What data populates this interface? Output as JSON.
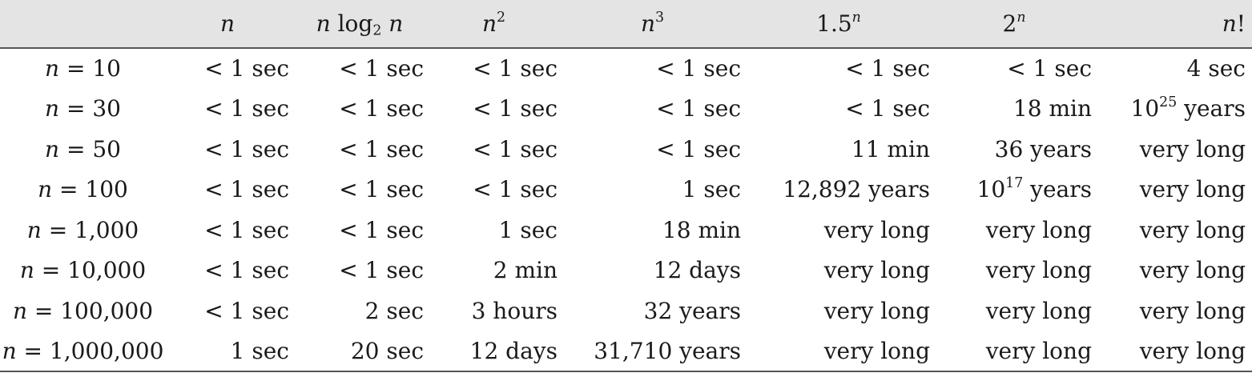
{
  "table": {
    "headers": [
      {
        "key": "label",
        "base": "",
        "sup": "",
        "sub": ""
      },
      {
        "key": "n",
        "base": "n",
        "sup": "",
        "sub": ""
      },
      {
        "key": "nlogn",
        "prefix": "n log",
        "sub": "2",
        "suffix": " n"
      },
      {
        "key": "n2",
        "base": "n",
        "sup": "2"
      },
      {
        "key": "n3",
        "base": "n",
        "sup": "3"
      },
      {
        "key": "1.5n",
        "base": "1.5",
        "sup": "n"
      },
      {
        "key": "2n",
        "base": "2",
        "sup": "n"
      },
      {
        "key": "nfact",
        "base": "n!"
      }
    ],
    "rows": [
      {
        "label_var": "n",
        "label_eq": " = 10",
        "cells": [
          "< 1 sec",
          "< 1 sec",
          "< 1 sec",
          "< 1 sec",
          "< 1 sec",
          "< 1 sec",
          "4 sec"
        ]
      },
      {
        "label_var": "n",
        "label_eq": " = 30",
        "cells": [
          "< 1 sec",
          "< 1 sec",
          "< 1 sec",
          "< 1 sec",
          "< 1 sec",
          "18 min",
          {
            "base": "10",
            "sup": "25",
            "rest": " years"
          }
        ]
      },
      {
        "label_var": "n",
        "label_eq": " = 50",
        "cells": [
          "< 1 sec",
          "< 1 sec",
          "< 1 sec",
          "< 1 sec",
          "11 min",
          "36 years",
          "very long"
        ]
      },
      {
        "label_var": "n",
        "label_eq": " = 100",
        "cells": [
          "< 1 sec",
          "< 1 sec",
          "< 1 sec",
          "1 sec",
          "12,892 years",
          {
            "base": "10",
            "sup": "17",
            "rest": " years"
          },
          "very long"
        ]
      },
      {
        "label_var": "n",
        "label_eq": " = 1,000",
        "cells": [
          "< 1 sec",
          "< 1 sec",
          "1 sec",
          "18 min",
          "very long",
          "very long",
          "very long"
        ]
      },
      {
        "label_var": "n",
        "label_eq": " = 10,000",
        "cells": [
          "< 1 sec",
          "< 1 sec",
          "2 min",
          "12 days",
          "very long",
          "very long",
          "very long"
        ]
      },
      {
        "label_var": "n",
        "label_eq": " = 100,000",
        "cells": [
          "< 1 sec",
          "2 sec",
          "3 hours",
          "32 years",
          "very long",
          "very long",
          "very long"
        ]
      },
      {
        "label_var": "n",
        "label_eq": " = 1,000,000",
        "cells": [
          "1 sec",
          "20 sec",
          "12 days",
          "31,710 years",
          "very long",
          "very long",
          "very long"
        ]
      }
    ]
  }
}
